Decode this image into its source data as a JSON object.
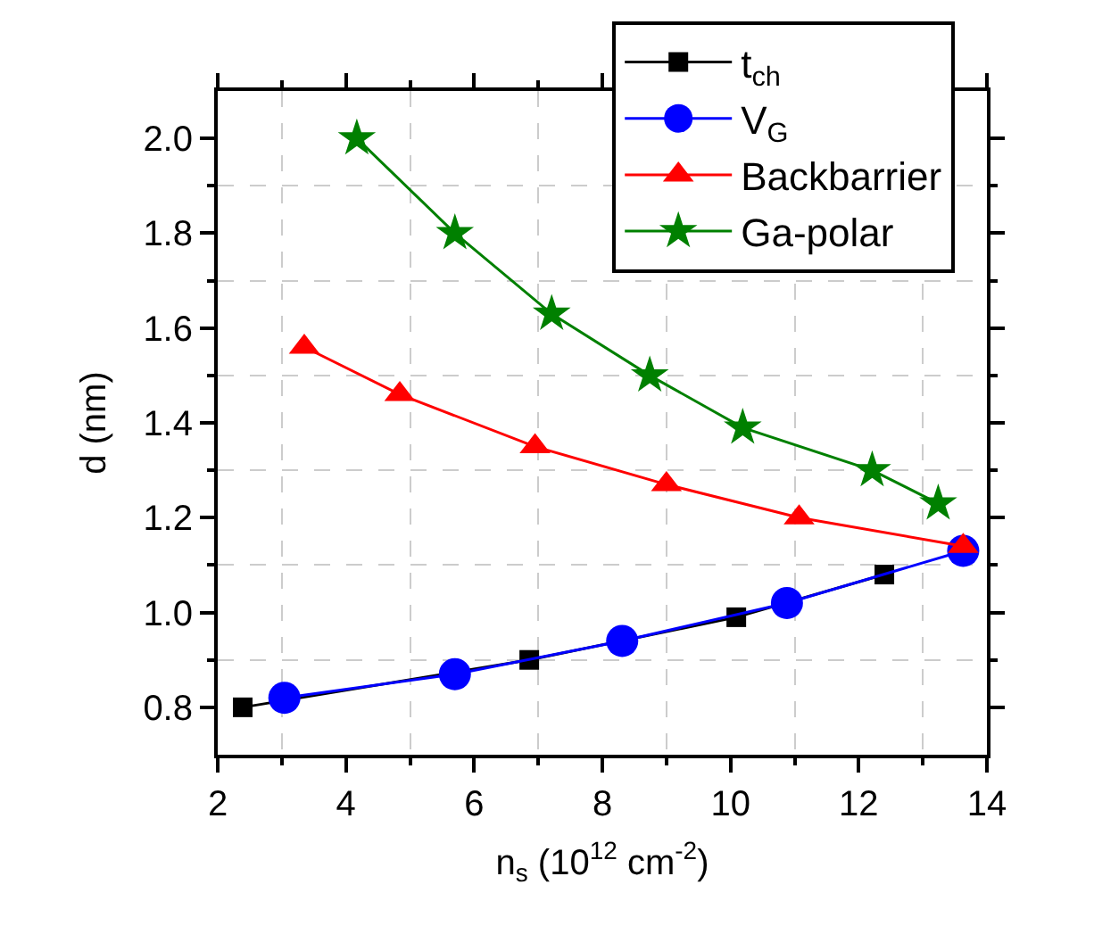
{
  "chart_data": {
    "type": "line",
    "xlabel": "n$_{s}$ (10$^{12}$ cm$^{-2}$)",
    "ylabel": "d (nm)",
    "xlim": [
      2,
      14
    ],
    "xticks": [
      2,
      4,
      6,
      8,
      10,
      12,
      14
    ],
    "ylim": [
      0.7,
      2.1
    ],
    "yticks": [
      0.8,
      {
        "value": 1,
        "label": "1.0"
      },
      1.2,
      1.4,
      1.6,
      1.8,
      {
        "value": 2,
        "label": "2.0"
      }
    ],
    "grid": true,
    "legend": "top right",
    "line_style": "solid",
    "series": [
      {
        "name": "t$_{ch}$",
        "color": "#000000",
        "marker": "square",
        "x": [
          2.39,
          6.86,
          10.09,
          12.4
        ],
        "values": [
          0.8,
          0.9,
          0.99,
          1.08
        ]
      },
      {
        "name": "V$_{G}$",
        "color": "#0000ff",
        "marker": "circle",
        "x": [
          3.04,
          5.7,
          8.31,
          10.88,
          13.63
        ],
        "values": [
          0.82,
          0.87,
          0.94,
          1.02,
          1.13
        ]
      },
      {
        "name": "Backbarrier",
        "color": "#ff0000",
        "marker": "triangle",
        "x": [
          3.35,
          4.84,
          6.95,
          9.0,
          11.07,
          13.63
        ],
        "values": [
          1.56,
          1.46,
          1.35,
          1.27,
          1.2,
          1.14
        ]
      },
      {
        "name": "Ga-polar",
        "color": "#008000",
        "marker": "star",
        "x": [
          4.17,
          5.7,
          7.21,
          8.74,
          10.19,
          12.21,
          13.24
        ],
        "values": [
          2.0,
          1.8,
          1.63,
          1.5,
          1.39,
          1.3,
          1.23
        ]
      }
    ]
  }
}
